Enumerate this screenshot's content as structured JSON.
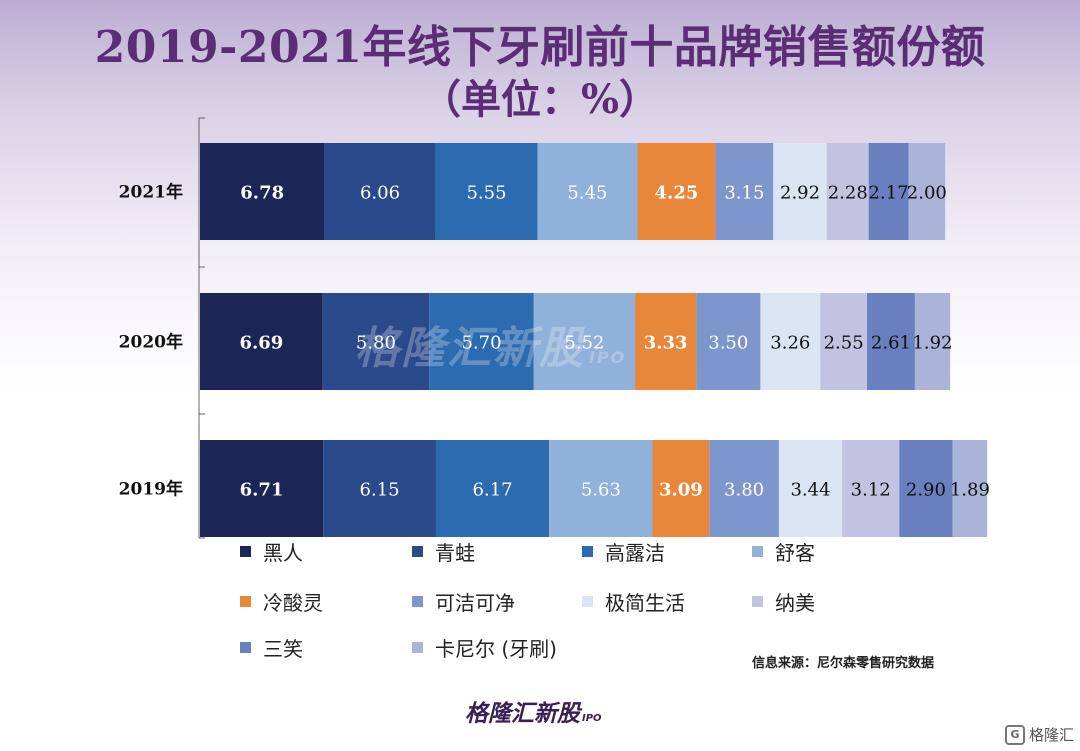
{
  "title": "2019-2021年线下牙刷前十品牌销售额份额",
  "subtitle": "（单位：%）",
  "chart_data": {
    "type": "bar",
    "orientation": "horizontal",
    "stacked": true,
    "title": "2019-2021年线下牙刷前十品牌销售额份额",
    "unit": "%",
    "categories": [
      "2021年",
      "2020年",
      "2019年"
    ],
    "series": [
      {
        "name": "黑人",
        "color": "#1b2656",
        "label_color": "#ffffff",
        "label_bold": true,
        "values": [
          6.78,
          6.69,
          6.71
        ]
      },
      {
        "name": "青蛙",
        "color": "#2a4a8c",
        "label_color": "#ffffff",
        "label_bold": false,
        "values": [
          6.06,
          5.8,
          6.15
        ]
      },
      {
        "name": "高露洁",
        "color": "#2d6bb0",
        "label_color": "#ffffff",
        "label_bold": false,
        "values": [
          5.55,
          5.7,
          6.17
        ]
      },
      {
        "name": "舒客",
        "color": "#8fb1da",
        "label_color": "#ffffff",
        "label_bold": false,
        "values": [
          5.45,
          5.52,
          5.63
        ]
      },
      {
        "name": "冷酸灵",
        "color": "#e8873a",
        "label_color": "#ffffff",
        "label_bold": true,
        "values": [
          4.25,
          3.33,
          3.09
        ]
      },
      {
        "name": "可洁可净",
        "color": "#7d96cc",
        "label_color": "#ffffff",
        "label_bold": false,
        "values": [
          3.15,
          3.5,
          3.8
        ]
      },
      {
        "name": "极简生活",
        "color": "#dae4f2",
        "label_color": "#111111",
        "label_bold": false,
        "values": [
          2.92,
          3.26,
          3.44
        ]
      },
      {
        "name": "纳美",
        "color": "#c2c3e0",
        "label_color": "#111111",
        "label_bold": false,
        "values": [
          2.28,
          2.55,
          3.12
        ]
      },
      {
        "name": "三笑",
        "color": "#6a7fbf",
        "label_color": "#111111",
        "label_bold": false,
        "values": [
          2.17,
          2.61,
          2.9
        ]
      },
      {
        "name": "卡尼尔 (牙刷)",
        "color": "#aab4d8",
        "label_color": "#111111",
        "label_bold": false,
        "values": [
          2.0,
          1.92,
          1.89
        ]
      }
    ]
  },
  "source": "信息来源：尼尔森零售研究数据",
  "watermark": "格隆汇新股",
  "watermark_suffix": "IPO",
  "logo": "格隆汇新股",
  "logo_suffix": "IPO",
  "corner_badge": "格隆汇"
}
